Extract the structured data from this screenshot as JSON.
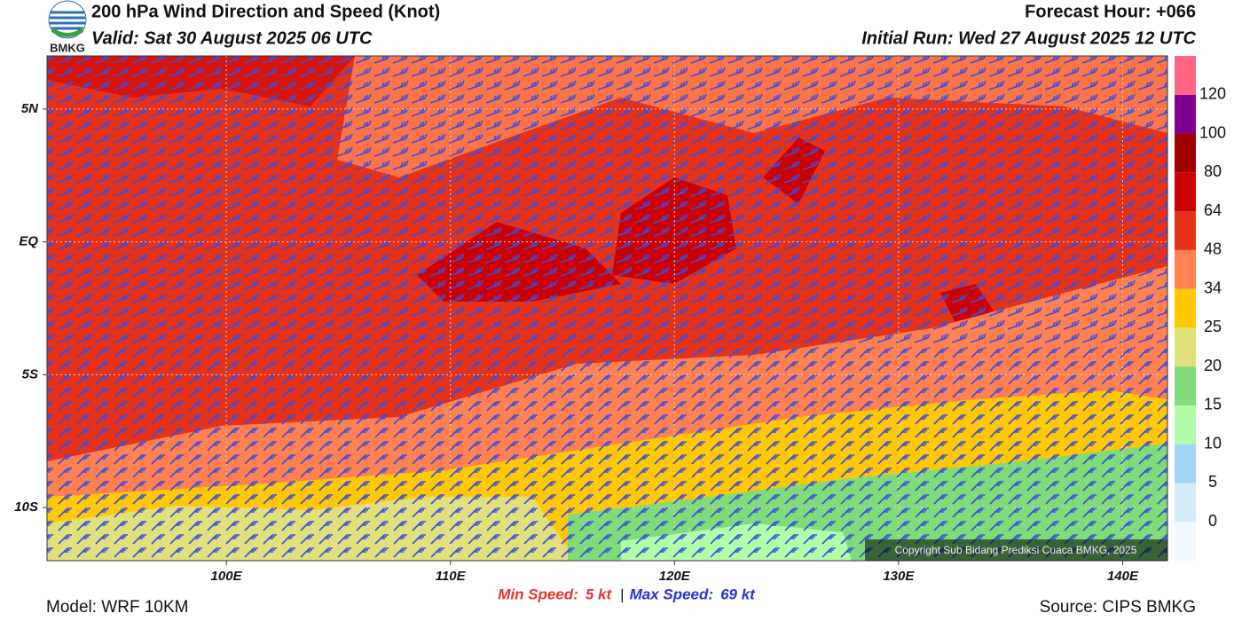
{
  "header": {
    "logo_text": "BMKG",
    "title": "200 hPa Wind Direction and Speed (Knot)",
    "valid": "Valid: Sat 30 August 2025 06 UTC",
    "forecast_hour": "Forecast Hour: +066",
    "initial_run": "Initial Run: Wed 27 August 2025 12 UTC"
  },
  "map": {
    "xlim": [
      92,
      142
    ],
    "ylim": [
      -12,
      7
    ],
    "xticks": [
      {
        "value": 100,
        "label": "100E"
      },
      {
        "value": 110,
        "label": "110E"
      },
      {
        "value": 120,
        "label": "120E"
      },
      {
        "value": 130,
        "label": "130E"
      },
      {
        "value": 140,
        "label": "140E"
      }
    ],
    "yticks": [
      {
        "value": 5,
        "label": "5N"
      },
      {
        "value": 0,
        "label": "EQ"
      },
      {
        "value": -5,
        "label": "5S"
      },
      {
        "value": -10,
        "label": "10S"
      }
    ],
    "grid": true,
    "copyright": "Copyright Sub Bidang Prediksi Cuaca BMKG, 2025"
  },
  "colorbar": {
    "ticks": [
      0,
      5,
      10,
      15,
      20,
      25,
      34,
      48,
      64,
      80,
      100,
      120
    ],
    "colors": [
      "#f2f8ff",
      "#d2ecfa",
      "#a2d6f8",
      "#b0ffa8",
      "#7fdc78",
      "#e2e07a",
      "#ffc800",
      "#ff8050",
      "#e63218",
      "#cc0000",
      "#a00000",
      "#800090",
      "#ff6480"
    ]
  },
  "footer": {
    "min_label": "Min Speed:",
    "min_value": "5 kt",
    "separator": "|",
    "max_label": "Max Speed:",
    "max_value": "69 kt",
    "model": "Model: WRF 10KM",
    "source": "Source: CIPS BMKG"
  }
}
